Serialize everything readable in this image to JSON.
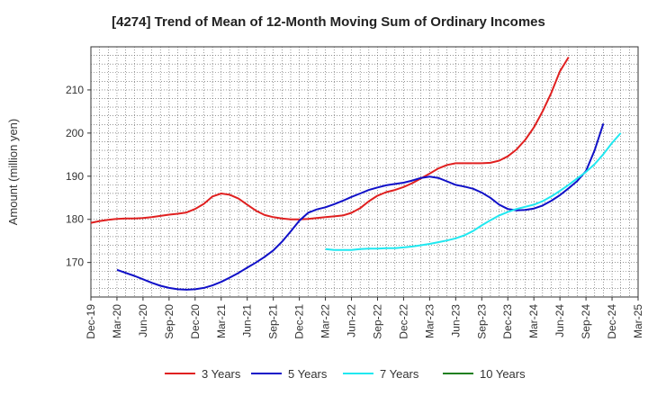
{
  "chart_data": {
    "type": "line",
    "title": "[4274]  Trend of Mean of 12-Month Moving Sum of Ordinary Incomes",
    "xlabel": "",
    "ylabel": "Amount (million yen)",
    "ylim": [
      162,
      220
    ],
    "yticks": [
      170,
      180,
      190,
      200,
      210
    ],
    "x_tick_labels": [
      "Dec-19",
      "Mar-20",
      "Jun-20",
      "Sep-20",
      "Dec-20",
      "Mar-21",
      "Jun-21",
      "Sep-21",
      "Dec-21",
      "Mar-22",
      "Jun-22",
      "Sep-22",
      "Dec-22",
      "Mar-23",
      "Jun-23",
      "Sep-23",
      "Dec-23",
      "Mar-24",
      "Jun-24",
      "Sep-24",
      "Dec-24",
      "Mar-25"
    ],
    "x_start": "Dec-19",
    "months_total": 63,
    "grid": true,
    "legend_position": "bottom",
    "series": [
      {
        "name": "3 Years",
        "color": "#e02020",
        "start_month_index": 0,
        "values": [
          179.2,
          179.6,
          179.9,
          180.1,
          180.2,
          180.2,
          180.3,
          180.5,
          180.8,
          181.1,
          181.3,
          181.6,
          182.4,
          183.6,
          185.3,
          186.0,
          185.7,
          184.8,
          183.4,
          182.0,
          181.0,
          180.5,
          180.2,
          180.0,
          180.0,
          180.1,
          180.3,
          180.5,
          180.7,
          180.9,
          181.5,
          182.6,
          184.2,
          185.5,
          186.3,
          186.8,
          187.5,
          188.4,
          189.5,
          190.6,
          191.8,
          192.6,
          193.0,
          193.0,
          193.0,
          193.0,
          193.1,
          193.6,
          194.6,
          196.2,
          198.4,
          201.3,
          205.0,
          209.3,
          214.3,
          217.6
        ]
      },
      {
        "name": "5 Years",
        "color": "#1010c8",
        "start_month_index": 3,
        "values": [
          168.3,
          167.6,
          166.9,
          166.1,
          165.3,
          164.6,
          164.1,
          163.8,
          163.7,
          163.8,
          164.1,
          164.7,
          165.5,
          166.5,
          167.6,
          168.8,
          170.0,
          171.3,
          172.8,
          174.8,
          177.2,
          179.7,
          181.5,
          182.3,
          182.8,
          183.5,
          184.3,
          185.2,
          186.0,
          186.8,
          187.4,
          187.9,
          188.2,
          188.5,
          189.0,
          189.6,
          189.9,
          189.6,
          188.8,
          188.0,
          187.6,
          187.1,
          186.2,
          185.0,
          183.4,
          182.4,
          182.1,
          182.2,
          182.5,
          183.2,
          184.3,
          185.6,
          187.2,
          188.9,
          191.2,
          196.0,
          202.2
        ]
      },
      {
        "name": "7 Years",
        "color": "#20e8f0",
        "start_month_index": 27,
        "values": [
          173.1,
          172.9,
          172.9,
          172.9,
          173.1,
          173.2,
          173.2,
          173.3,
          173.3,
          173.5,
          173.7,
          174.0,
          174.3,
          174.7,
          175.1,
          175.6,
          176.3,
          177.3,
          178.6,
          179.8,
          180.9,
          181.7,
          182.4,
          182.9,
          183.4,
          184.2,
          185.3,
          186.6,
          188.0,
          189.5,
          191.0,
          192.8,
          195.1,
          197.7,
          200.0
        ]
      },
      {
        "name": "10 Years",
        "color": "#208020",
        "start_month_index": 0,
        "values": []
      }
    ]
  }
}
